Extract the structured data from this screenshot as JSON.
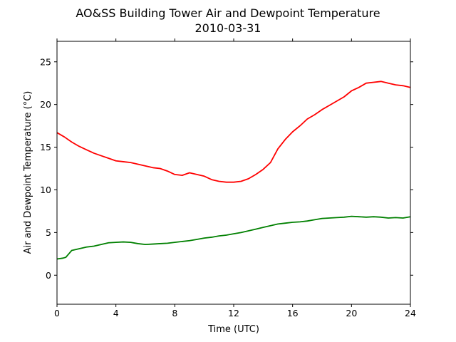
{
  "chart_data": {
    "type": "line",
    "title": "AO&SS Building Tower Air and Dewpoint Temperature",
    "subtitle": "2010-03-31",
    "xlabel": "Time (UTC)",
    "ylabel": "Air and Dewpoint Temperature (°C)",
    "xlim": [
      0,
      24
    ],
    "ylim": [
      -3.4,
      27.4
    ],
    "xticks": [
      0,
      4,
      8,
      12,
      16,
      20,
      24
    ],
    "yticks": [
      0,
      5,
      10,
      15,
      20,
      25
    ],
    "grid": false,
    "series": [
      {
        "color": "#ff0000",
        "x": [
          0,
          0.5,
          1,
          1.5,
          2,
          2.5,
          3,
          3.5,
          4,
          4.5,
          5,
          5.5,
          6,
          6.5,
          7,
          7.5,
          8,
          8.5,
          9,
          9.5,
          10,
          10.5,
          11,
          11.5,
          12,
          12.5,
          13,
          13.5,
          14,
          14.5,
          15,
          15.5,
          16,
          16.5,
          17,
          17.5,
          18,
          18.5,
          19,
          19.5,
          20,
          20.5,
          21,
          21.5,
          22,
          22.5,
          23,
          23.5,
          24
        ],
        "values": [
          16.7,
          16.2,
          15.6,
          15.1,
          14.7,
          14.3,
          14.0,
          13.7,
          13.4,
          13.3,
          13.2,
          13.0,
          12.8,
          12.6,
          12.5,
          12.2,
          11.8,
          11.7,
          12.0,
          11.8,
          11.6,
          11.2,
          11.0,
          10.9,
          10.9,
          11.0,
          11.3,
          11.8,
          12.4,
          13.2,
          14.8,
          15.9,
          16.8,
          17.5,
          18.3,
          18.8,
          19.4,
          19.9,
          20.4,
          20.9,
          21.6,
          22.0,
          22.5,
          22.6,
          22.7,
          22.5,
          22.3,
          22.2,
          22.0
        ]
      },
      {
        "color": "#008000",
        "x": [
          0,
          0.4,
          0.6,
          0.8,
          1,
          1.5,
          2,
          2.5,
          3,
          3.5,
          4,
          4.5,
          5,
          5.5,
          6,
          6.5,
          7,
          7.5,
          8,
          8.5,
          9,
          9.5,
          10,
          10.5,
          11,
          11.5,
          12,
          12.5,
          13,
          13.5,
          14,
          14.5,
          15,
          15.5,
          16,
          16.5,
          17,
          17.5,
          18,
          18.5,
          19,
          19.5,
          20,
          20.5,
          21,
          21.5,
          22,
          22.5,
          23,
          23.5,
          24
        ],
        "values": [
          1.9,
          2.0,
          2.1,
          2.5,
          2.9,
          3.1,
          3.3,
          3.4,
          3.6,
          3.8,
          3.85,
          3.9,
          3.85,
          3.7,
          3.6,
          3.65,
          3.7,
          3.75,
          3.85,
          3.95,
          4.05,
          4.2,
          4.35,
          4.45,
          4.6,
          4.7,
          4.85,
          5.0,
          5.2,
          5.4,
          5.6,
          5.8,
          6.0,
          6.1,
          6.2,
          6.25,
          6.35,
          6.5,
          6.65,
          6.7,
          6.75,
          6.8,
          6.9,
          6.85,
          6.8,
          6.85,
          6.8,
          6.7,
          6.75,
          6.7,
          6.85
        ]
      }
    ]
  }
}
